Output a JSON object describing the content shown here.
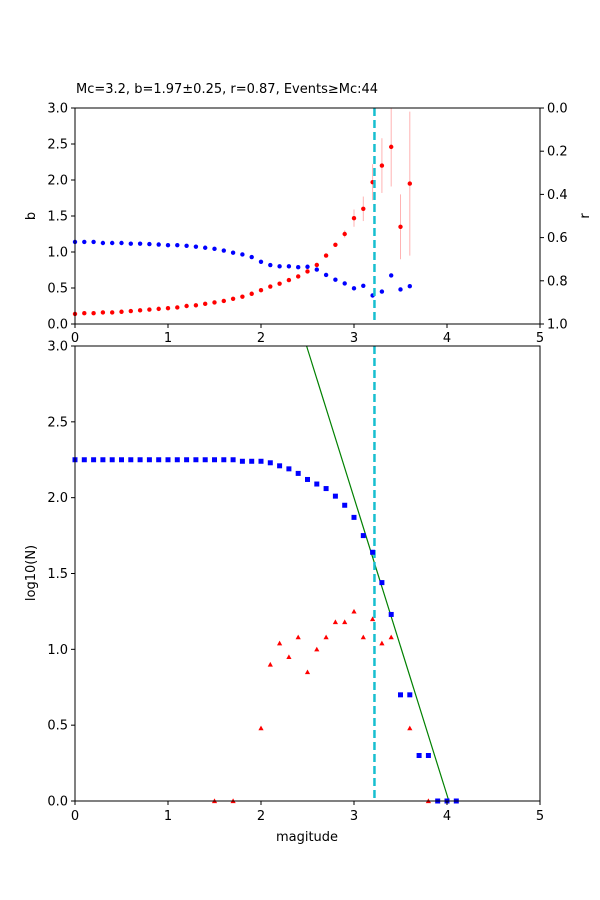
{
  "chart_data": [
    {
      "type": "scatter",
      "title": "Mc=3.2, b=1.97±0.25, r=0.87, Events≥Mc:44",
      "xlabel": "",
      "ylabel": "b",
      "ylabel_right": "r",
      "xlim": [
        0,
        5
      ],
      "ylim": [
        0,
        3
      ],
      "ylim_right": [
        1,
        0
      ],
      "xticks": [
        "0",
        "1",
        "2",
        "3",
        "4",
        "5"
      ],
      "yticks": [
        "0.0",
        "0.5",
        "1.0",
        "1.5",
        "2.0",
        "2.5",
        "3.0"
      ],
      "yticks_right": [
        "0.0",
        "0.2",
        "0.4",
        "0.6",
        "0.8",
        "1.0"
      ],
      "mc_line": 3.22,
      "colors": {
        "b": "#ff0000",
        "r": "#0000ff",
        "mc": "#17becf",
        "err": "#ffb3b3"
      },
      "b_series": {
        "x": [
          0.0,
          0.1,
          0.2,
          0.3,
          0.4,
          0.5,
          0.6,
          0.7,
          0.8,
          0.9,
          1.0,
          1.1,
          1.2,
          1.3,
          1.4,
          1.5,
          1.6,
          1.7,
          1.8,
          1.9,
          2.0,
          2.1,
          2.2,
          2.3,
          2.4,
          2.5,
          2.6,
          2.7,
          2.8,
          2.9,
          3.0,
          3.1,
          3.2,
          3.3,
          3.4,
          3.5,
          3.6
        ],
        "y": [
          0.14,
          0.15,
          0.15,
          0.16,
          0.16,
          0.17,
          0.18,
          0.19,
          0.2,
          0.21,
          0.22,
          0.23,
          0.25,
          0.26,
          0.28,
          0.3,
          0.32,
          0.35,
          0.38,
          0.42,
          0.47,
          0.52,
          0.56,
          0.61,
          0.66,
          0.73,
          0.82,
          0.95,
          1.1,
          1.25,
          1.47,
          1.6,
          1.97,
          2.2,
          2.46,
          1.35,
          1.95
        ],
        "err": [
          0,
          0,
          0,
          0,
          0,
          0,
          0,
          0,
          0,
          0,
          0,
          0,
          0,
          0,
          0,
          0,
          0,
          0,
          0,
          0,
          0,
          0,
          0,
          0,
          0,
          0,
          0,
          0,
          0,
          0.05,
          0.12,
          0.17,
          0.25,
          0.38,
          0.55,
          0.45,
          1.0
        ]
      },
      "r_series": {
        "x": [
          0.0,
          0.1,
          0.2,
          0.3,
          0.4,
          0.5,
          0.6,
          0.7,
          0.8,
          0.9,
          1.0,
          1.1,
          1.2,
          1.3,
          1.4,
          1.5,
          1.6,
          1.7,
          1.8,
          1.9,
          2.0,
          2.1,
          2.2,
          2.3,
          2.4,
          2.5,
          2.6,
          2.7,
          2.8,
          2.9,
          3.0,
          3.1,
          3.2,
          3.3,
          3.4,
          3.5,
          3.6
        ],
        "y": [
          0.62,
          0.62,
          0.62,
          0.625,
          0.625,
          0.625,
          0.628,
          0.628,
          0.63,
          0.632,
          0.635,
          0.635,
          0.638,
          0.642,
          0.647,
          0.652,
          0.66,
          0.67,
          0.678,
          0.69,
          0.712,
          0.727,
          0.733,
          0.733,
          0.737,
          0.735,
          0.748,
          0.773,
          0.795,
          0.812,
          0.835,
          0.823,
          0.868,
          0.85,
          0.775,
          0.84,
          0.825
        ]
      }
    },
    {
      "type": "scatter",
      "title": "",
      "xlabel": "magitude",
      "ylabel": "log10(N)",
      "xlim": [
        0,
        5
      ],
      "ylim": [
        0,
        3
      ],
      "xticks": [
        "0",
        "1",
        "2",
        "3",
        "4",
        "5"
      ],
      "yticks": [
        "0.0",
        "0.5",
        "1.0",
        "1.5",
        "2.0",
        "2.5",
        "3.0"
      ],
      "mc_line": 3.22,
      "colors": {
        "cumulative": "#0000ff",
        "noncumulative": "#ff0000",
        "fit": "#008000",
        "mc": "#17becf"
      },
      "cumulative": {
        "x": [
          0.0,
          0.1,
          0.2,
          0.3,
          0.4,
          0.5,
          0.6,
          0.7,
          0.8,
          0.9,
          1.0,
          1.1,
          1.2,
          1.3,
          1.4,
          1.5,
          1.6,
          1.7,
          1.8,
          1.9,
          2.0,
          2.1,
          2.2,
          2.3,
          2.4,
          2.5,
          2.6,
          2.7,
          2.8,
          2.9,
          3.0,
          3.1,
          3.2,
          3.3,
          3.4,
          3.5,
          3.6,
          3.7,
          3.8,
          3.9,
          4.0,
          4.1
        ],
        "y": [
          2.25,
          2.25,
          2.25,
          2.25,
          2.25,
          2.25,
          2.25,
          2.25,
          2.25,
          2.25,
          2.25,
          2.25,
          2.25,
          2.25,
          2.25,
          2.25,
          2.25,
          2.25,
          2.24,
          2.24,
          2.24,
          2.23,
          2.21,
          2.19,
          2.16,
          2.12,
          2.09,
          2.06,
          2.01,
          1.95,
          1.87,
          1.75,
          1.64,
          1.44,
          1.23,
          0.7,
          0.7,
          0.3,
          0.3,
          0.0,
          0.0,
          0.0
        ]
      },
      "noncumulative": {
        "x": [
          1.5,
          1.7,
          2.0,
          2.1,
          2.2,
          2.3,
          2.4,
          2.5,
          2.6,
          2.7,
          2.8,
          2.9,
          3.0,
          3.1,
          3.2,
          3.3,
          3.4,
          3.5,
          3.6,
          3.8
        ],
        "y": [
          0.0,
          0.0,
          0.48,
          0.9,
          1.04,
          0.95,
          1.08,
          0.85,
          1.0,
          1.08,
          1.18,
          1.18,
          1.25,
          1.08,
          1.2,
          1.04,
          1.08,
          0.7,
          0.48,
          0.0
        ]
      },
      "fit_line": {
        "x": [
          2.49,
          4.02
        ],
        "y": [
          3.0,
          0.0
        ]
      }
    }
  ]
}
